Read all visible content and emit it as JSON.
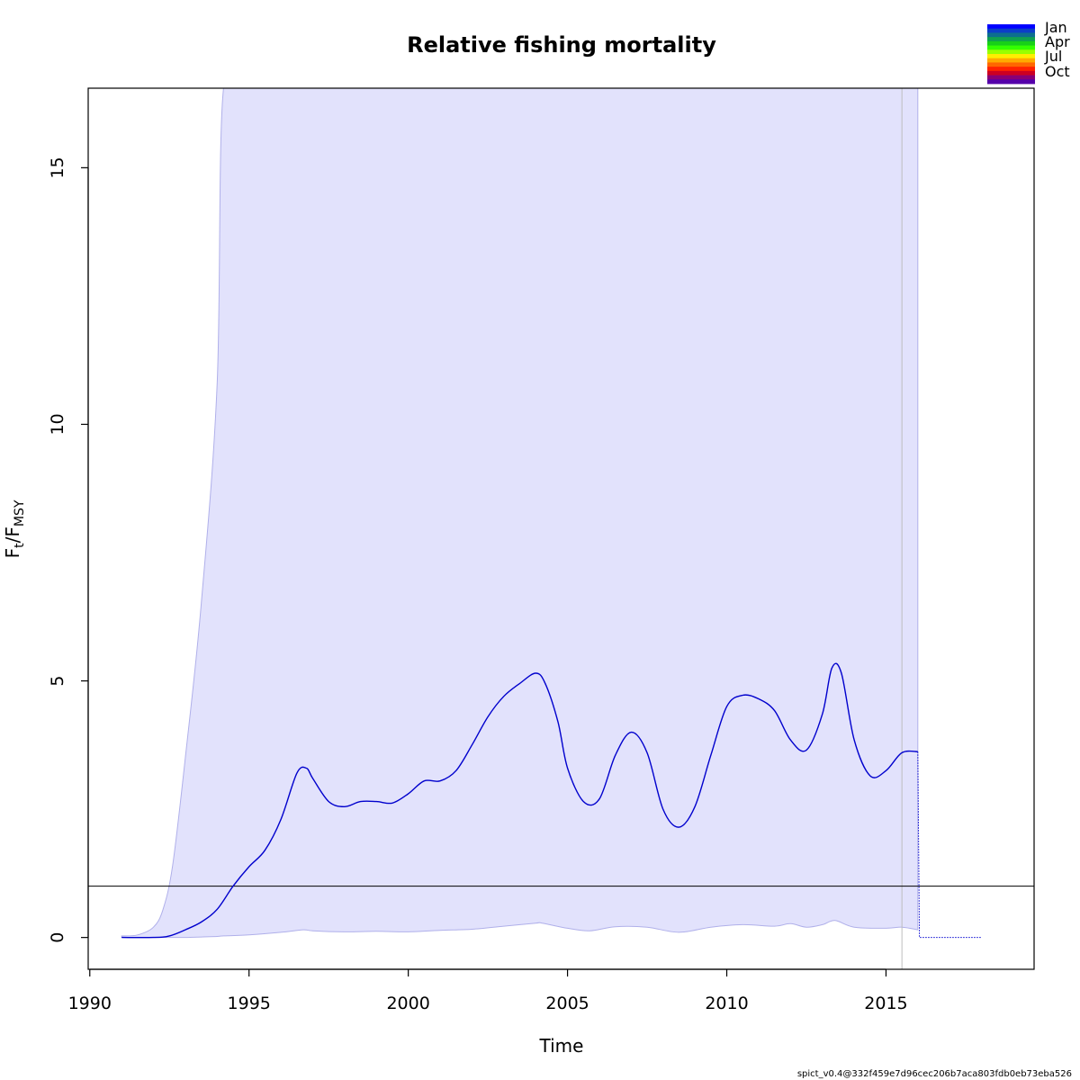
{
  "chart_data": {
    "type": "line",
    "title": "Relative fishing mortality",
    "xlabel": "Time",
    "ylabel": {
      "main": "F",
      "sub_t": "t",
      "slash": "/",
      "main2": "F",
      "sub_msy": "MSY"
    },
    "xlim": [
      1989.95,
      2019.65
    ],
    "ylim": [
      -0.62,
      16.55
    ],
    "x_ticks": [
      1990,
      1995,
      2000,
      2005,
      2010,
      2015
    ],
    "x_tick_labels": [
      "1990",
      "1995",
      "2000",
      "2005",
      "2010",
      "2015"
    ],
    "y_ticks": [
      0,
      5,
      10,
      15
    ],
    "y_tick_labels": [
      "0",
      "5",
      "10",
      "15"
    ],
    "reference_line_y": 1,
    "vertical_line_x": 2015.5,
    "grid": false,
    "series": [
      {
        "role": "estimate",
        "color": "#0000cd",
        "x": [
          1991.0,
          1992.0,
          1992.5,
          1993.0,
          1993.5,
          1994.0,
          1994.5,
          1995.0,
          1995.5,
          1996.0,
          1996.5,
          1996.8,
          1997.0,
          1997.5,
          1998.0,
          1998.5,
          1999.0,
          1999.5,
          2000.0,
          2000.5,
          2001.0,
          2001.5,
          2002.0,
          2002.5,
          2003.0,
          2003.5,
          2004.0,
          2004.3,
          2004.7,
          2005.0,
          2005.5,
          2006.0,
          2006.5,
          2007.0,
          2007.5,
          2008.0,
          2008.5,
          2009.0,
          2009.5,
          2010.0,
          2010.5,
          2011.0,
          2011.5,
          2012.0,
          2012.5,
          2013.0,
          2013.3,
          2013.6,
          2014.0,
          2014.5,
          2015.0,
          2015.5,
          2016.0
        ],
        "y": [
          0.0,
          0.0,
          0.03,
          0.15,
          0.3,
          0.55,
          1.0,
          1.38,
          1.7,
          2.3,
          3.2,
          3.3,
          3.1,
          2.65,
          2.55,
          2.65,
          2.65,
          2.62,
          2.8,
          3.05,
          3.05,
          3.25,
          3.75,
          4.3,
          4.7,
          4.95,
          5.15,
          4.95,
          4.2,
          3.3,
          2.65,
          2.7,
          3.55,
          4.0,
          3.6,
          2.5,
          2.15,
          2.55,
          3.55,
          4.5,
          4.72,
          4.65,
          4.42,
          3.85,
          3.65,
          4.35,
          5.25,
          5.15,
          3.85,
          3.15,
          3.25,
          3.6,
          3.62
        ]
      },
      {
        "role": "forecast",
        "color": "#0000cd",
        "style": "dotted",
        "x": [
          2016.0,
          2016.05,
          2018.0
        ],
        "y": [
          3.62,
          0.0,
          0.0
        ]
      }
    ],
    "confidence_band": {
      "color": "#e2e2fc",
      "x": [
        1991.0,
        1991.5,
        1992.0,
        1992.3,
        1992.6,
        1993.0,
        1993.5,
        1994.0,
        1994.2,
        1995,
        1996,
        1996.7,
        1997,
        1998,
        1999,
        2000,
        2001,
        2002,
        2003,
        2004,
        2004.2,
        2005,
        2005.7,
        2006.5,
        2007.5,
        2008.5,
        2009.5,
        2010.5,
        2011.5,
        2012,
        2012.5,
        2013,
        2013.4,
        2014,
        2015,
        2015.5,
        2016.0
      ],
      "lower": [
        0.0,
        0.0,
        0.0,
        0.0,
        0.0,
        0.0,
        0.01,
        0.02,
        0.03,
        0.05,
        0.1,
        0.15,
        0.13,
        0.11,
        0.12,
        0.11,
        0.14,
        0.16,
        0.22,
        0.28,
        0.28,
        0.18,
        0.13,
        0.21,
        0.2,
        0.1,
        0.2,
        0.25,
        0.22,
        0.27,
        0.2,
        0.25,
        0.33,
        0.2,
        0.18,
        0.2,
        0.15
      ],
      "upper": [
        0.03,
        0.05,
        0.2,
        0.55,
        1.4,
        3.5,
        6.5,
        10.8,
        16.55,
        16.55,
        16.55,
        16.55,
        16.55,
        16.55,
        16.55,
        16.55,
        16.55,
        16.55,
        16.55,
        16.55,
        16.55,
        16.55,
        16.55,
        16.55,
        16.55,
        16.55,
        16.55,
        16.55,
        16.55,
        16.55,
        16.55,
        16.55,
        16.55,
        16.55,
        16.55,
        16.55,
        16.55
      ]
    },
    "legend": {
      "position": "top-right",
      "type": "month-colorbar",
      "labels": [
        "Jan",
        "Apr",
        "Jul",
        "Oct"
      ],
      "colors": [
        "#0000ff",
        "#0c3ec8",
        "#0d6e8f",
        "#10a050",
        "#18d018",
        "#33ff00",
        "#99ff00",
        "#ffee00",
        "#ffaa00",
        "#ff6600",
        "#ff2200",
        "#cc0022",
        "#880077",
        "#5500aa"
      ]
    }
  },
  "footer": "spict_v0.4@332f459e7d96cec206b7aca803fdb0eb73eba526"
}
